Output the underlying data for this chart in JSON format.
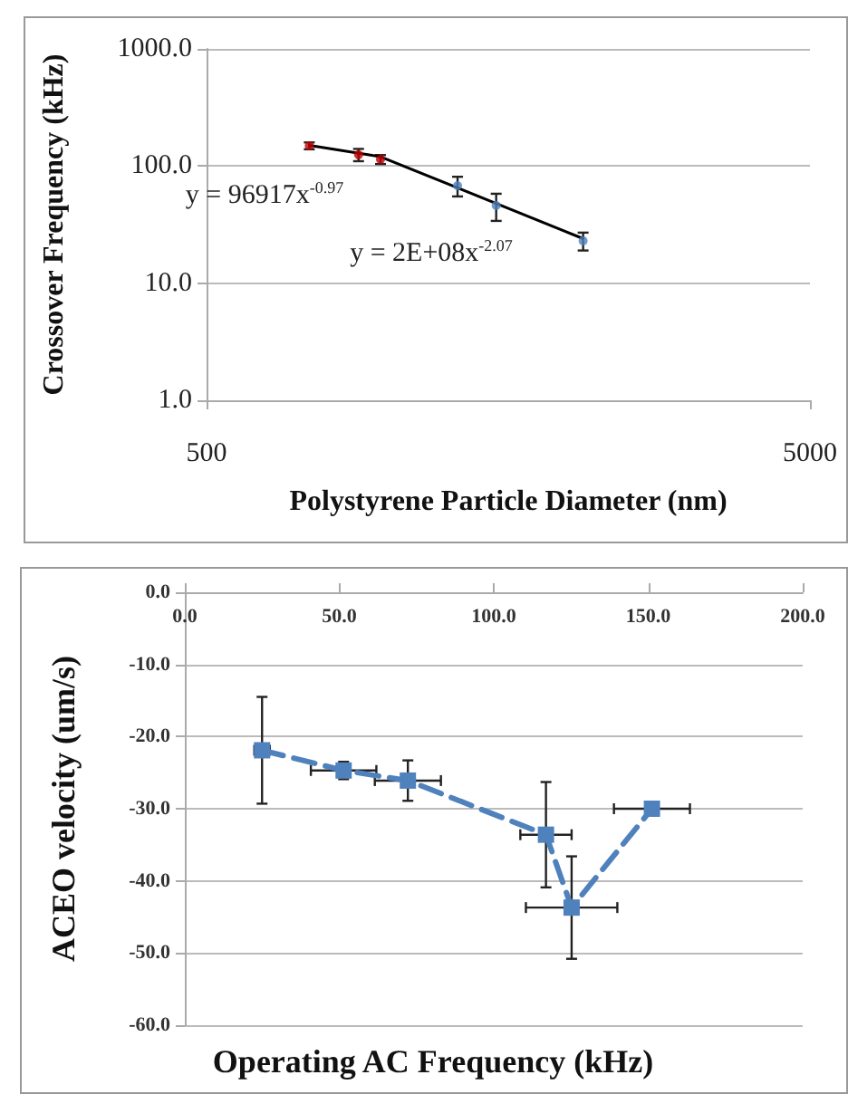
{
  "chart_data": [
    {
      "type": "scatter",
      "xlabel": "Polystyrene Particle Diameter (nm)",
      "ylabel": "Crossover Frequency (kHz)",
      "log": "xy",
      "xlim": [
        500,
        5000
      ],
      "xticks": [
        500,
        5000
      ],
      "ylim": [
        1,
        1000
      ],
      "yticks": [
        {
          "value": 1,
          "label": "1.0"
        },
        {
          "value": 10,
          "label": "10.0"
        },
        {
          "value": 100,
          "label": "100.0"
        },
        {
          "value": 1000,
          "label": "1000.0"
        }
      ],
      "grid": "y",
      "series": [
        {
          "color": "#c00000",
          "marker": "circle",
          "x": [
            740,
            893,
            971
          ],
          "values": [
            149,
            125,
            114
          ],
          "errors": [
            10,
            15,
            10
          ]
        },
        {
          "color": "#4f81bd",
          "marker": "circle",
          "x": [
            1303,
            1510,
            2104
          ],
          "values": [
            68,
            46,
            23
          ],
          "errors": [
            13,
            12,
            4
          ]
        },
        {
          "type": "line",
          "marker": "none",
          "color": "#000000",
          "x": [
            740,
            971
          ],
          "values": [
            150,
            120
          ]
        },
        {
          "type": "line",
          "marker": "none",
          "color": "#000000",
          "x": [
            971,
            2104
          ],
          "values": [
            120,
            24
          ]
        }
      ],
      "annotations": [
        "y = 96917x$^{-0.97}$",
        "y = 2E+08x$^{-2.07}$"
      ]
    },
    {
      "type": "line",
      "xlabel": "Operating AC Frequency (kHz)",
      "ylabel": "ACEO velocity (um/s)",
      "xlim": [
        0,
        200
      ],
      "xticks": [
        {
          "value": 0,
          "label": "0.0"
        },
        {
          "value": 50,
          "label": "50.0"
        },
        {
          "value": 100,
          "label": "100.0"
        },
        {
          "value": 150,
          "label": "150.0"
        },
        {
          "value": 200,
          "label": "200.0"
        }
      ],
      "ylim": [
        -60,
        0
      ],
      "yticks": [
        {
          "value": -60,
          "label": "-60.0"
        },
        {
          "value": -50,
          "label": "-50.0"
        },
        {
          "value": -40,
          "label": "-40.0"
        },
        {
          "value": -30,
          "label": "-30.0"
        },
        {
          "value": -20,
          "label": "-20.0"
        },
        {
          "value": -10,
          "label": "-10.0"
        },
        {
          "value": 0,
          "label": "0.0"
        }
      ],
      "grid": "y",
      "marker": "square",
      "line_style": "dashed",
      "series": [
        {
          "color": "#4f81bd",
          "x": [
            25,
            51.4,
            72.2,
            116.9,
            125.2,
            151.2
          ],
          "values": [
            -21.9,
            -24.7,
            -26.1,
            -33.6,
            -43.7,
            -30.0
          ],
          "errors": [
            7.4,
            1.2,
            2.8,
            7.3,
            7.1,
            null
          ],
          "xerrors": [
            2.5,
            10.6,
            10.7,
            8.3,
            14.8,
            12.3
          ]
        }
      ]
    }
  ]
}
